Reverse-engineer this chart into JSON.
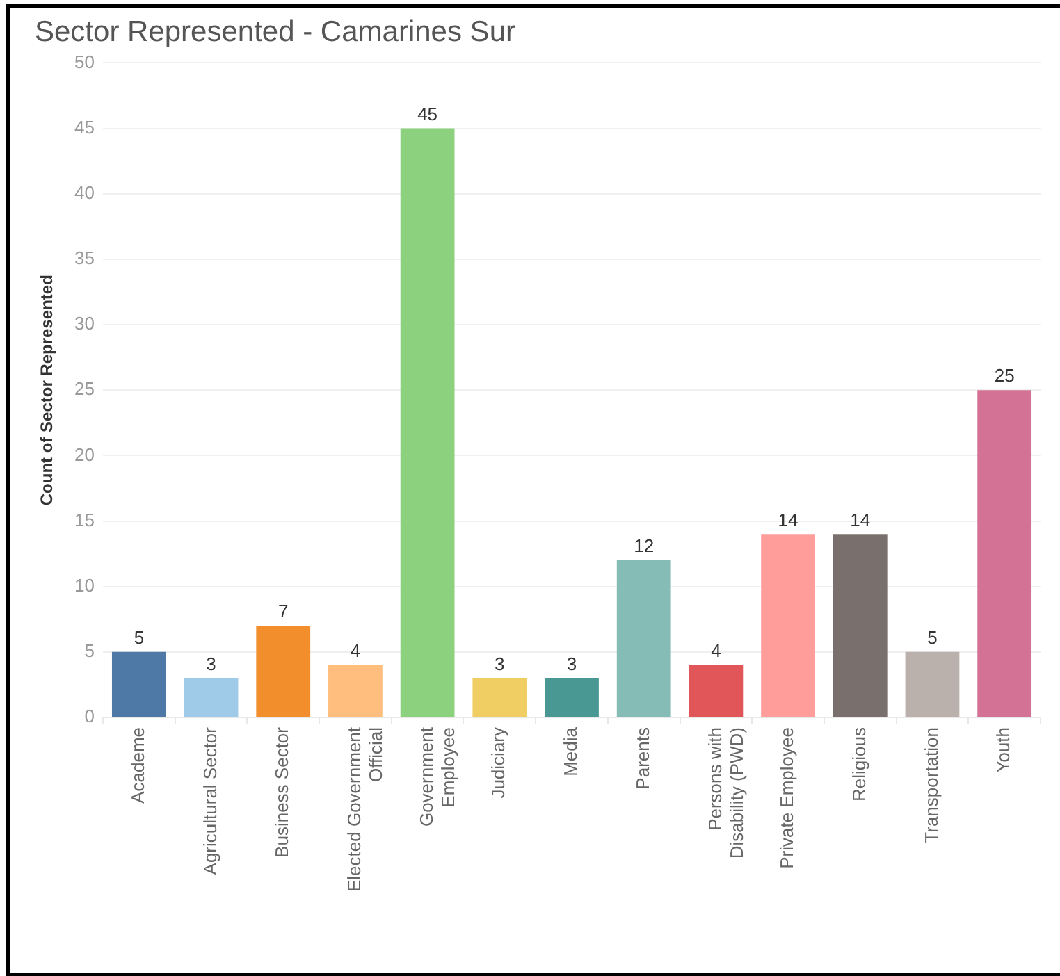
{
  "chart_data": {
    "type": "bar",
    "title": "Sector Represented - Camarines Sur",
    "ylabel": "Count of Sector Represented",
    "categories": [
      "Academe",
      "Agricultural Sector",
      "Business Sector",
      "Elected Government Official",
      "Government Employee",
      "Judiciary",
      "Media",
      "Parents",
      "Persons with Disability (PWD)",
      "Private Employee",
      "Religious",
      "Transportation",
      "Youth"
    ],
    "values": [
      5,
      3,
      7,
      4,
      45,
      3,
      3,
      12,
      4,
      14,
      14,
      5,
      25
    ],
    "colors": [
      "#4e79a7",
      "#a0cbe8",
      "#f28e2b",
      "#ffbe7d",
      "#8cd17d",
      "#f1ce63",
      "#499894",
      "#86bcb6",
      "#e15759",
      "#ff9d9a",
      "#79706e",
      "#bab0ac",
      "#d37295"
    ],
    "ylim": [
      0,
      50
    ],
    "yticks": [
      0,
      5,
      10,
      15,
      20,
      25,
      30,
      35,
      40,
      45,
      50
    ],
    "grid": "y",
    "data_labels": true
  }
}
